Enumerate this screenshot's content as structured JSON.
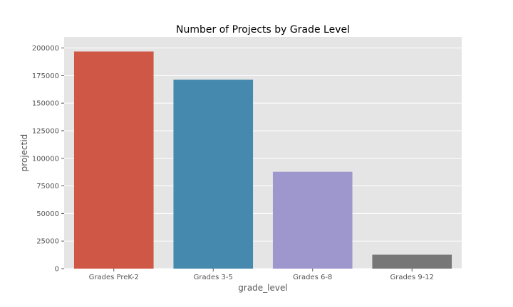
{
  "chart_data": {
    "type": "bar",
    "title": "Number of Projects by Grade Level",
    "xlabel": "grade_level",
    "ylabel": "projectid",
    "categories": [
      "Grades PreK-2",
      "Grades 3-5",
      "Grades 6-8",
      "Grades 9-12"
    ],
    "values": [
      196800,
      171300,
      87800,
      12600
    ],
    "colors": [
      "#cf5745",
      "#4689af",
      "#9e97cd",
      "#777777"
    ],
    "ylim": [
      0,
      210000
    ],
    "yticks": [
      0,
      25000,
      50000,
      75000,
      100000,
      125000,
      150000,
      175000,
      200000
    ],
    "ytick_labels": [
      "0",
      "25000",
      "50000",
      "75000",
      "100000",
      "125000",
      "150000",
      "175000",
      "200000"
    ],
    "grid": true,
    "background": "#e5e5e5",
    "grid_color": "#ffffff"
  }
}
